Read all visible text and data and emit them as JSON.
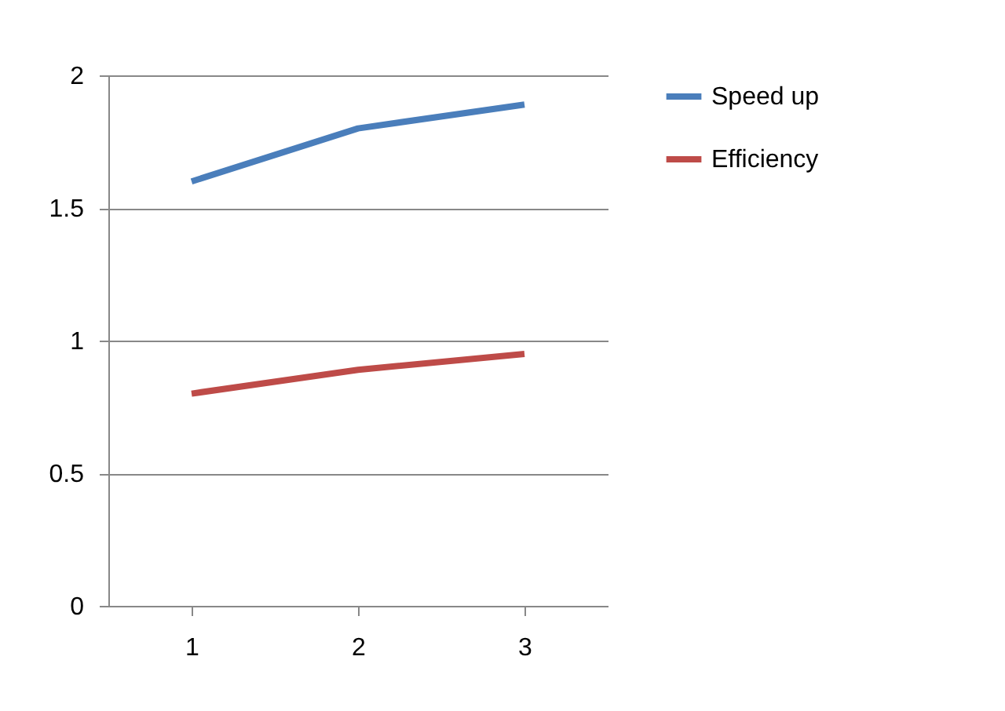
{
  "chart_data": {
    "type": "line",
    "categories": [
      "1",
      "2",
      "3"
    ],
    "series": [
      {
        "name": "Speed up",
        "color": "#4a7ebb",
        "values": [
          1.6,
          1.8,
          1.89
        ]
      },
      {
        "name": "Efficiency",
        "color": "#be4b48",
        "values": [
          0.8,
          0.89,
          0.95
        ]
      }
    ],
    "ylim": [
      0,
      2
    ],
    "yticks": [
      0,
      0.5,
      1,
      1.5,
      2
    ],
    "grid": "y",
    "legend": "right",
    "marker": "none",
    "line_style": "solid"
  }
}
